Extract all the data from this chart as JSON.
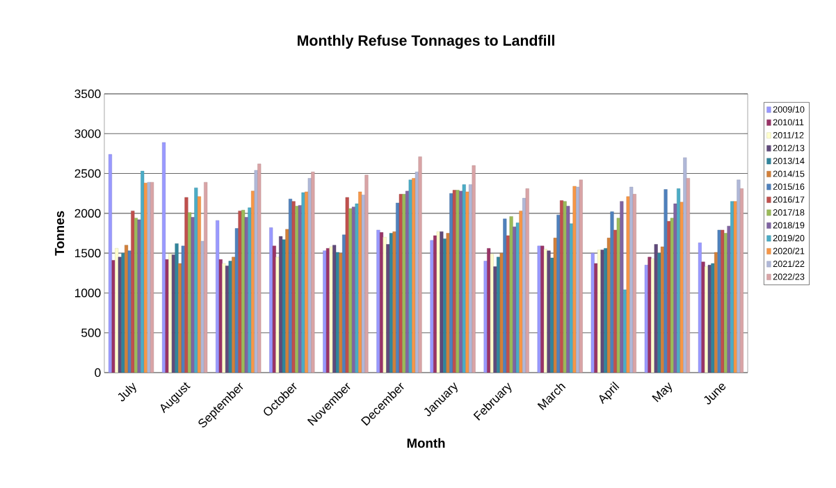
{
  "chart_data": {
    "type": "bar",
    "title": "Monthly Refuse Tonnages to Landfill",
    "xlabel": "Month",
    "ylabel": "Tonnes",
    "categories": [
      "July",
      "August",
      "September",
      "October",
      "November",
      "December",
      "January",
      "February",
      "March",
      "April",
      "May",
      "June"
    ],
    "ylim": [
      0,
      3500
    ],
    "yticks": [
      0,
      500,
      1000,
      1500,
      2000,
      2500,
      3000,
      3500
    ],
    "grid": "y",
    "legend": "right",
    "series": [
      {
        "name": "2009/10",
        "color": "#9999ff",
        "values": [
          2740,
          2890,
          1910,
          1820,
          1530,
          1790,
          1660,
          1400,
          1590,
          1500,
          1350,
          1630
        ]
      },
      {
        "name": "2010/11",
        "color": "#993366",
        "values": [
          1410,
          1420,
          1420,
          1590,
          1560,
          1760,
          1720,
          1560,
          1590,
          1370,
          1450,
          1390
        ]
      },
      {
        "name": "2011/12",
        "color": "#ffffcc",
        "values": [
          1560,
          1490,
          1370,
          1450,
          1580,
          1700,
          1770,
          1490,
          1550,
          1540,
          1430,
          1330
        ]
      },
      {
        "name": "2012/13",
        "color": "#604a7b",
        "values": [
          1450,
          1480,
          1340,
          1710,
          1600,
          1610,
          1770,
          1330,
          1530,
          1540,
          1610,
          1350
        ]
      },
      {
        "name": "2013/14",
        "color": "#31859c",
        "values": [
          1500,
          1620,
          1400,
          1670,
          1510,
          1750,
          1680,
          1450,
          1440,
          1560,
          1500,
          1370
        ]
      },
      {
        "name": "2014/15",
        "color": "#d2803a",
        "values": [
          1600,
          1370,
          1450,
          1800,
          1500,
          1770,
          1750,
          1500,
          1690,
          1690,
          1580,
          1510
        ]
      },
      {
        "name": "2015/16",
        "color": "#4f81bd",
        "values": [
          1530,
          1590,
          1810,
          2180,
          1730,
          2130,
          2250,
          1930,
          1980,
          2020,
          2300,
          1790
        ]
      },
      {
        "name": "2016/17",
        "color": "#c0504d",
        "values": [
          2030,
          2200,
          2030,
          2150,
          2200,
          2240,
          2290,
          1720,
          2160,
          1790,
          1900,
          1790
        ]
      },
      {
        "name": "2017/18",
        "color": "#9bbb59",
        "values": [
          1940,
          2010,
          2040,
          2090,
          2060,
          2240,
          2290,
          1960,
          2150,
          1940,
          1940,
          1750
        ]
      },
      {
        "name": "2018/19",
        "color": "#8064a2",
        "values": [
          1920,
          1950,
          1950,
          2100,
          2080,
          2280,
          2280,
          1830,
          2090,
          2150,
          2120,
          1840
        ]
      },
      {
        "name": "2019/20",
        "color": "#4bacc6",
        "values": [
          2530,
          2320,
          2070,
          2260,
          2120,
          2420,
          2360,
          1880,
          1870,
          1040,
          2310,
          2150
        ]
      },
      {
        "name": "2020/21",
        "color": "#f79646",
        "values": [
          2380,
          2210,
          2280,
          2270,
          2270,
          2440,
          2270,
          2030,
          2340,
          2210,
          2140,
          2150
        ]
      },
      {
        "name": "2021/22",
        "color": "#b0b8d8",
        "values": [
          2390,
          1650,
          2540,
          2440,
          2230,
          2520,
          2360,
          2190,
          2330,
          2330,
          2700,
          2420
        ]
      },
      {
        "name": "2022/23",
        "color": "#d9a4a6",
        "values": [
          2390,
          2390,
          2620,
          2520,
          2480,
          2710,
          2600,
          2310,
          2420,
          2240,
          2440,
          2310
        ]
      }
    ]
  }
}
